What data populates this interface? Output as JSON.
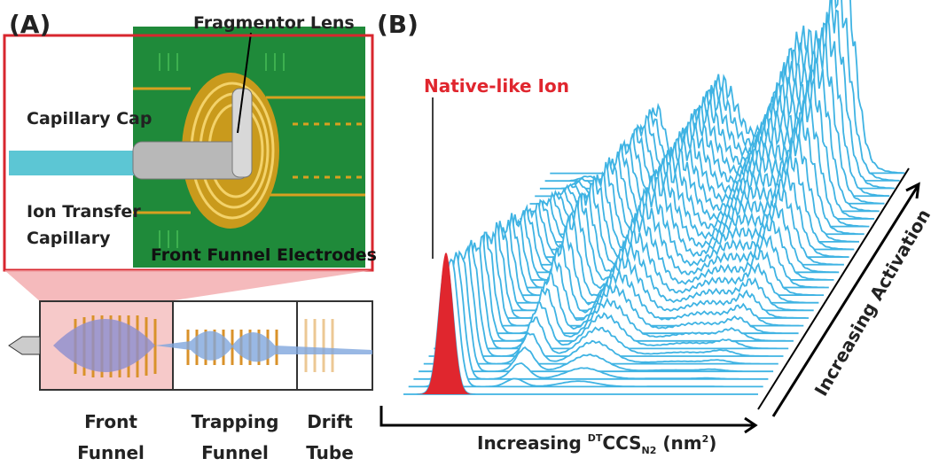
{
  "panel_a": {
    "label": "(A)",
    "fragmentor_lens": "Fragmentor Lens",
    "capillary_cap": "Capillary Cap",
    "ion_transfer_capillary": [
      "Ion Transfer",
      "Capillary"
    ],
    "front_funnel_electrodes": "Front Funnel Electrodes",
    "sections": [
      [
        "Front",
        "Funnel"
      ],
      [
        "Trapping",
        "Funnel"
      ],
      [
        "Drift",
        "Tube"
      ]
    ]
  },
  "panel_b": {
    "label": "(B)",
    "native_ion": "Native-like Ion",
    "x_axis_label": {
      "prefix": "Increasing",
      "superscript": "DT",
      "main": "CCS",
      "subscript": "N2",
      "unit_open": "(nm",
      "unit_sup": "2",
      "unit_close": ")"
    },
    "depth_axis_label": "Increasing Activation"
  }
}
